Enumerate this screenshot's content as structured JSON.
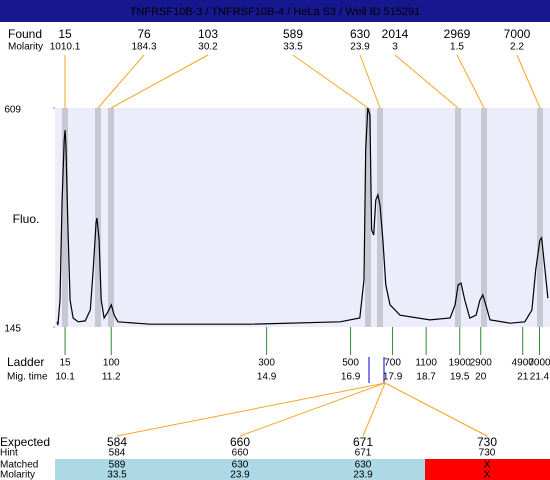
{
  "header": {
    "title": "TNFRSF10B-3 / TNFRSF10B-4 / HeLa S3 / Well ID 515291"
  },
  "row_labels": {
    "found": "Found",
    "found_molarity": "Molarity",
    "ladder": "Ladder",
    "mig_time": "Mig. time",
    "expected": "Expected",
    "hint": "Hint",
    "matched": "Matched",
    "molarity": "Molarity"
  },
  "found": {
    "sizes": [
      15,
      76,
      103,
      589,
      630,
      2014,
      2969,
      7000
    ],
    "molarity": [
      1010.1,
      184.3,
      30.2,
      33.5,
      23.9,
      3,
      1.5,
      2.2
    ]
  },
  "chart_data": {
    "type": "line",
    "ylabel": "Fluo.",
    "color": "#000000",
    "x": [
      9.91,
      9.93,
      9.98,
      10.03,
      10.08,
      10.1,
      10.12,
      10.17,
      10.22,
      10.29,
      10.41,
      10.58,
      10.7,
      10.77,
      10.84,
      10.86,
      10.91,
      10.96,
      11.03,
      11.12,
      11.2,
      11.27,
      11.36,
      12.12,
      14.5,
      16.65,
      17.12,
      17.22,
      17.26,
      17.31,
      17.36,
      17.4,
      17.45,
      17.5,
      17.55,
      17.6,
      17.67,
      17.74,
      17.84,
      18.08,
      18.79,
      19.27,
      19.39,
      19.46,
      19.53,
      19.62,
      19.74,
      19.89,
      19.98,
      20.05,
      20.12,
      20.22,
      20.7,
      21.05,
      21.22,
      21.31,
      21.41,
      21.45,
      21.53,
      21.6
    ],
    "values": [
      156,
      149,
      202,
      414,
      541,
      562,
      531,
      351,
      202,
      164,
      156,
      158,
      181,
      266,
      367,
      376,
      329,
      202,
      164,
      177,
      192,
      170,
      156,
      151,
      151,
      156,
      164,
      245,
      520,
      609,
      594,
      351,
      340,
      414,
      425,
      403,
      329,
      234,
      192,
      170,
      160,
      164,
      192,
      234,
      238,
      202,
      164,
      170,
      202,
      213,
      192,
      160,
      153,
      156,
      181,
      266,
      329,
      334,
      266,
      206
    ],
    "xlim": [
      9.86,
      21.65
    ],
    "ylim": [
      145,
      609
    ],
    "yticks": [
      609,
      145
    ]
  },
  "ladder": {
    "sizes": [
      15,
      100,
      300,
      500,
      700,
      1100,
      1900,
      2900,
      4900,
      7000
    ],
    "times": [
      10.1,
      11.2,
      14.9,
      16.9,
      17.9,
      18.7,
      19.5,
      20,
      21,
      21.4
    ]
  },
  "expected": {
    "expected": [
      584,
      660,
      671,
      730
    ],
    "hint": [
      584,
      660,
      671,
      730
    ],
    "matched": [
      589,
      630,
      630,
      "X"
    ],
    "molarity": [
      33.5,
      23.9,
      23.9,
      "X"
    ]
  }
}
